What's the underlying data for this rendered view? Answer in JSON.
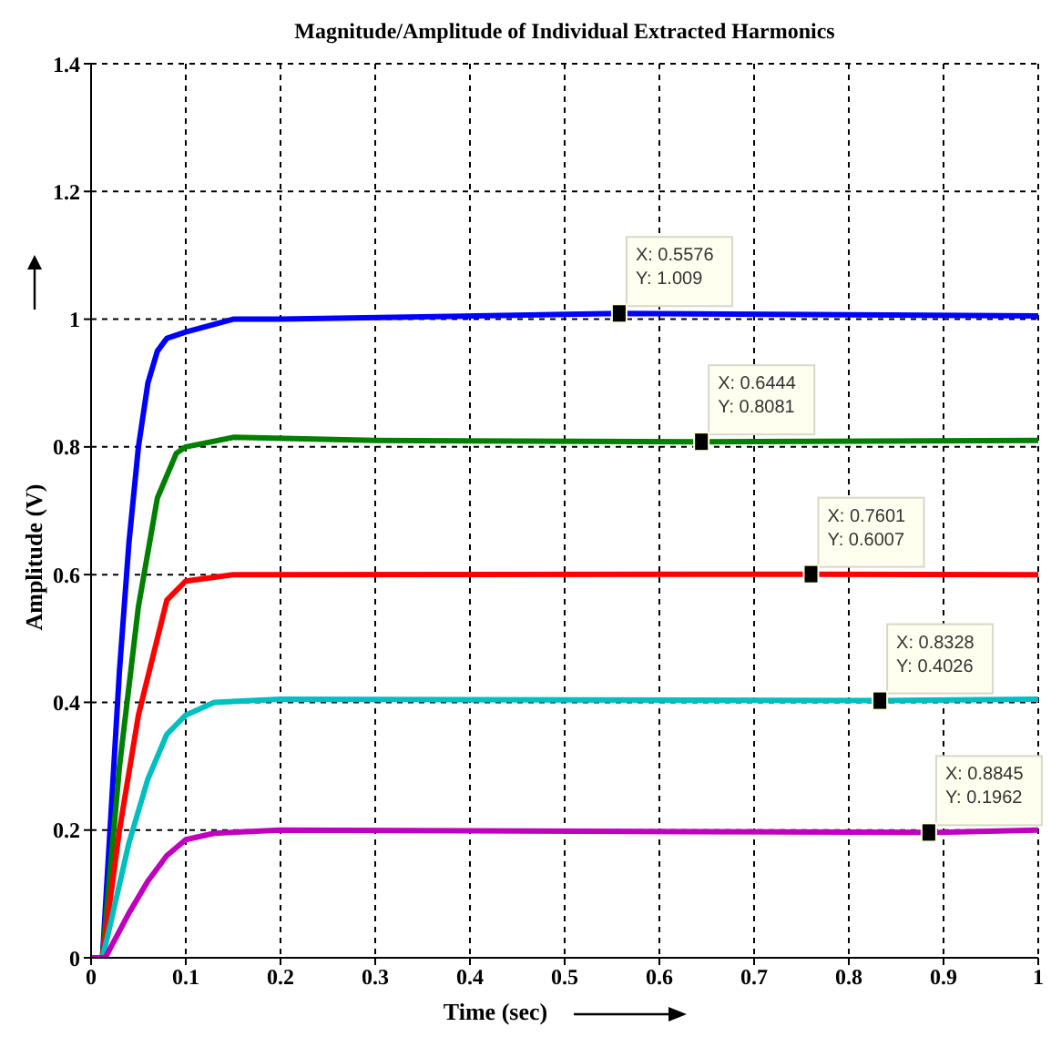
{
  "chart_data": {
    "type": "line",
    "title": "Magnitude/Amplitude of Individual Extracted Harmonics",
    "xlabel": "Time (sec)",
    "ylabel": "Amplitude (V)",
    "xlim": [
      0,
      1
    ],
    "xticks": [
      0,
      0.1,
      0.2,
      0.3,
      0.4,
      0.5,
      0.6,
      0.7,
      0.8,
      0.9,
      1
    ],
    "ylim": [
      0,
      1.4
    ],
    "yticks": [
      0,
      0.2,
      0.4,
      0.6,
      0.8,
      1,
      1.2,
      1.4
    ],
    "grid": true,
    "marker": "none",
    "line_style": "solid",
    "series": [
      {
        "color": "#0000ff",
        "x": [
          0,
          0.012,
          0.02,
          0.03,
          0.04,
          0.05,
          0.06,
          0.07,
          0.08,
          0.1,
          0.15,
          0.2,
          0.5576,
          1
        ],
        "values": [
          0,
          0,
          0.2,
          0.45,
          0.65,
          0.8,
          0.9,
          0.95,
          0.97,
          0.98,
          1,
          1,
          1.009,
          1.005
        ]
      },
      {
        "color": "#008000",
        "x": [
          0.012,
          0.03,
          0.05,
          0.07,
          0.09,
          0.1,
          0.15,
          0.3,
          0.6444,
          1
        ],
        "values": [
          0,
          0.3,
          0.55,
          0.72,
          0.79,
          0.8,
          0.815,
          0.81,
          0.8081,
          0.81
        ]
      },
      {
        "color": "#ff0000",
        "x": [
          0.012,
          0.03,
          0.05,
          0.07,
          0.08,
          0.1,
          0.15,
          0.7601,
          1
        ],
        "values": [
          0,
          0.2,
          0.38,
          0.5,
          0.56,
          0.59,
          0.6,
          0.6007,
          0.6
        ]
      },
      {
        "color": "#00bfbf",
        "x": [
          0.012,
          0.02,
          0.04,
          0.06,
          0.08,
          0.1,
          0.13,
          0.2,
          0.8328,
          1
        ],
        "values": [
          0,
          0.05,
          0.18,
          0.28,
          0.35,
          0.38,
          0.4,
          0.405,
          0.4026,
          0.405
        ]
      },
      {
        "color": "#bf00bf",
        "x": [
          0,
          0.015,
          0.04,
          0.06,
          0.08,
          0.1,
          0.13,
          0.2,
          0.8845,
          1
        ],
        "values": [
          0,
          0,
          0.07,
          0.12,
          0.16,
          0.185,
          0.195,
          0.2,
          0.1962,
          0.2
        ]
      }
    ],
    "annotations": [
      {
        "text": "X: 0.5576\nY: 1.009",
        "x": 0.5576,
        "y": 1.009
      },
      {
        "text": "X: 0.6444\nY: 0.8081",
        "x": 0.6444,
        "y": 0.8081
      },
      {
        "text": "X: 0.7601\nY: 0.6007",
        "x": 0.7601,
        "y": 0.6007
      },
      {
        "text": "X: 0.8328\nY: 0.4026",
        "x": 0.8328,
        "y": 0.4026
      },
      {
        "text": "X: 0.8845\nY: 0.1962",
        "x": 0.8845,
        "y": 0.1962
      }
    ]
  }
}
